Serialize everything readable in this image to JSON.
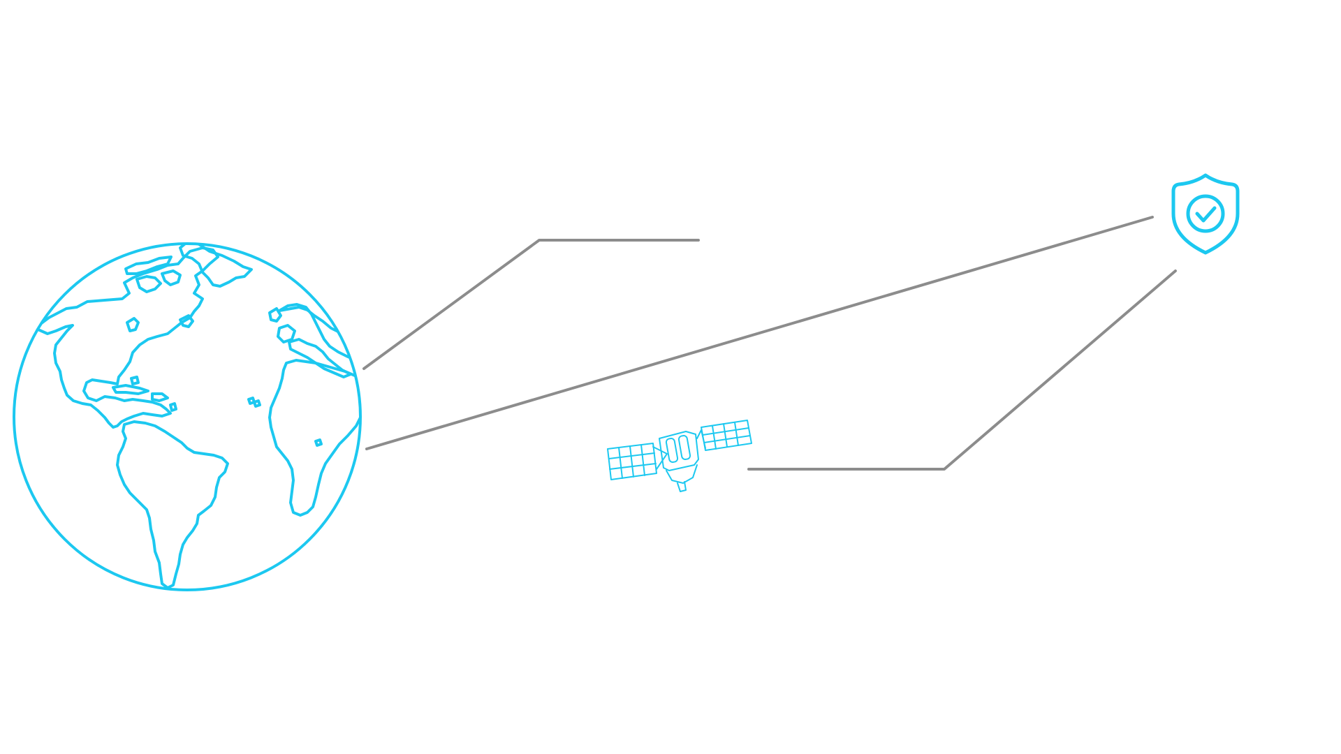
{
  "diagram": {
    "nodes": [
      {
        "id": "earth",
        "icon": "globe-icon"
      },
      {
        "id": "satellite",
        "icon": "satellite-icon"
      },
      {
        "id": "security",
        "icon": "shield-check-icon"
      }
    ],
    "edges": [
      {
        "from": "earth",
        "to": "open-end"
      },
      {
        "from": "earth",
        "to": "security"
      },
      {
        "from": "satellite",
        "to": "security"
      }
    ]
  },
  "colors": {
    "accent": "#1cc8f0",
    "connector": "#8c8c8c",
    "background": "#ffffff"
  }
}
